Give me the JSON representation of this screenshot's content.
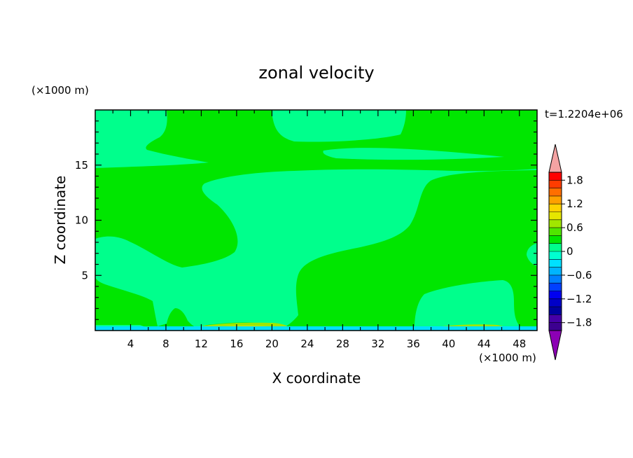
{
  "chart_data": {
    "type": "contour",
    "title": "zonal velocity",
    "xlabel": "X coordinate",
    "ylabel": "Z coordinate",
    "x_unit": "(×1000 m)",
    "y_unit": "(×1000 m)",
    "time_label": "t=1.2204e+06",
    "xlim": [
      0,
      50
    ],
    "ylim": [
      0,
      20
    ],
    "x_ticks": [
      4,
      8,
      12,
      16,
      20,
      24,
      28,
      32,
      36,
      40,
      44,
      48
    ],
    "y_ticks": [
      5,
      10,
      15
    ],
    "colorbar": {
      "min": -2.0,
      "max": 2.0,
      "step": 0.2,
      "labels": [
        "1.8",
        "1.2",
        "0.6",
        "0",
        "−0.6",
        "−1.2",
        "−1.8"
      ],
      "label_values": [
        1.8,
        1.2,
        0.6,
        0,
        -0.6,
        -1.2,
        -1.8
      ],
      "colors": [
        "#3c0090",
        "#4600a8",
        "#0000a0",
        "#0000c8",
        "#0000f0",
        "#0040ff",
        "#0080ff",
        "#00b4ff",
        "#00e0ff",
        "#00ffd0",
        "#00ff8c",
        "#00e600",
        "#50e600",
        "#a0e600",
        "#e6e600",
        "#ffd200",
        "#ffa000",
        "#ff6e00",
        "#ff3c00",
        "#ff0000"
      ],
      "over_color": "#f4a3a3",
      "under_color": "#8c00b4"
    },
    "field_levels": {
      "-0.6_to_-0.4": "#00e0ff",
      "-0.2_to_0": "#00ff8c",
      "0_to_0.2": "#00e600",
      "0.4_to_0.6": "#a0e600",
      "0.6_to_0.8": "#e6e600"
    }
  }
}
